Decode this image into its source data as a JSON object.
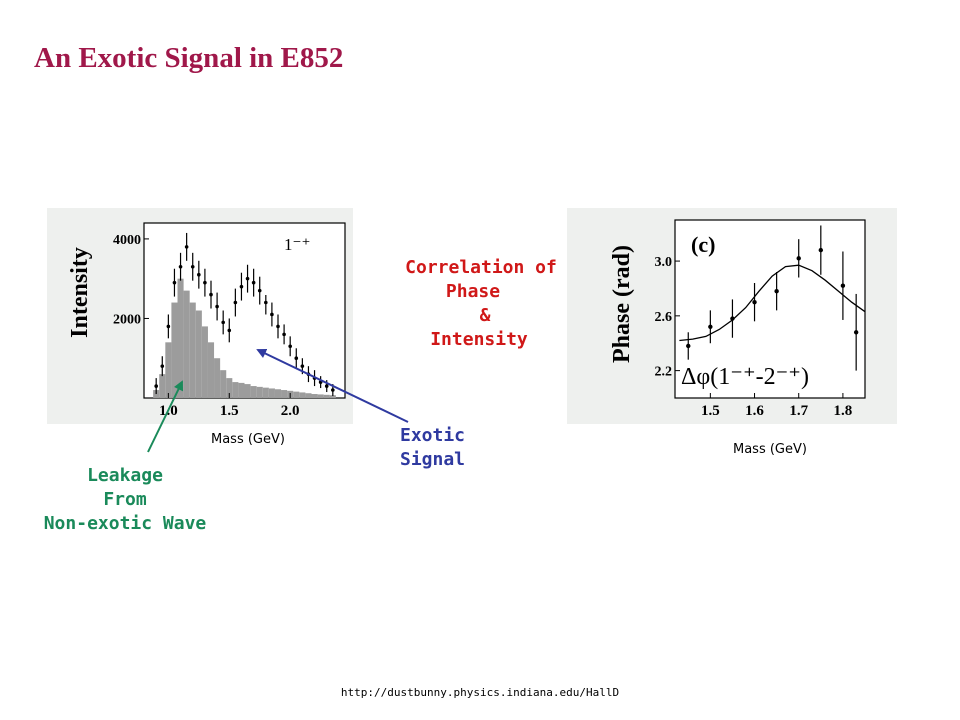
{
  "title": "An Exotic Signal in E852",
  "footer_url": "http://dustbunny.physics.indiana.edu/HallD",
  "annotations": {
    "correlation": [
      "Correlation of",
      "Phase",
      "&",
      "Intensity"
    ],
    "exotic": [
      "Exotic",
      "Signal"
    ],
    "leakage": [
      "Leakage",
      "From",
      "Non-exotic Wave"
    ]
  },
  "colors": {
    "title": "#a0184a",
    "correlation": "#d01818",
    "exotic": "#2f3aa0",
    "leakage": "#1a8a5a",
    "histogram_fill": "#9c9c9c"
  },
  "chart_data": [
    {
      "type": "bar",
      "ylabel": "Intensity",
      "xlabel": "Mass (GeV)",
      "legend": "1⁻⁺",
      "x_ticks": [
        "1.0",
        "1.5",
        "2.0"
      ],
      "y_ticks": [
        "2000",
        "4000"
      ],
      "xlim": [
        0.8,
        2.45
      ],
      "ylim": [
        0,
        4400
      ],
      "grid": false,
      "series": [
        {
          "style": "filled-histogram",
          "x": [
            0.9,
            0.95,
            1.0,
            1.05,
            1.1,
            1.15,
            1.2,
            1.25,
            1.3,
            1.35,
            1.4,
            1.45,
            1.5,
            1.55,
            1.6,
            1.65,
            1.7,
            1.75,
            1.8,
            1.85,
            1.9,
            1.95,
            2.0,
            2.05,
            2.1,
            2.15,
            2.2,
            2.25,
            2.3,
            2.35
          ],
          "values": [
            200,
            600,
            1400,
            2400,
            3000,
            2700,
            2400,
            2200,
            1800,
            1400,
            1000,
            700,
            500,
            400,
            380,
            350,
            300,
            280,
            260,
            240,
            220,
            200,
            180,
            160,
            140,
            120,
            100,
            90,
            80,
            70
          ]
        },
        {
          "style": "points-with-errors",
          "x": [
            0.9,
            0.95,
            1.0,
            1.05,
            1.1,
            1.15,
            1.2,
            1.25,
            1.3,
            1.35,
            1.4,
            1.45,
            1.5,
            1.55,
            1.6,
            1.65,
            1.7,
            1.75,
            1.8,
            1.85,
            1.9,
            1.95,
            2.0,
            2.05,
            2.1,
            2.15,
            2.2,
            2.25,
            2.3,
            2.35
          ],
          "values": [
            300,
            800,
            1800,
            2900,
            3300,
            3800,
            3300,
            3100,
            2900,
            2600,
            2300,
            1900,
            1700,
            2400,
            2800,
            3000,
            2900,
            2700,
            2400,
            2100,
            1800,
            1600,
            1300,
            1000,
            800,
            600,
            500,
            400,
            300,
            200
          ],
          "errors": [
            200,
            250,
            300,
            350,
            350,
            350,
            350,
            350,
            350,
            350,
            350,
            300,
            300,
            350,
            350,
            350,
            350,
            350,
            300,
            300,
            300,
            250,
            250,
            250,
            200,
            200,
            200,
            150,
            150,
            150
          ]
        }
      ]
    },
    {
      "type": "scatter",
      "ylabel": "Phase (rad)",
      "xlabel": "Mass (GeV)",
      "panel_label": "(c)",
      "series_label": "Δφ(1⁻⁺-2⁻⁺)",
      "x_ticks": [
        "1.5",
        "1.6",
        "1.7",
        "1.8"
      ],
      "y_ticks": [
        "2.2",
        "2.6",
        "3.0"
      ],
      "xlim": [
        1.42,
        1.85
      ],
      "ylim": [
        2.0,
        3.3
      ],
      "grid": false,
      "points": {
        "x": [
          1.45,
          1.5,
          1.55,
          1.6,
          1.65,
          1.7,
          1.75,
          1.8,
          1.83
        ],
        "y": [
          2.38,
          2.52,
          2.58,
          2.7,
          2.78,
          3.02,
          3.08,
          2.82,
          2.48
        ],
        "errors": [
          0.1,
          0.12,
          0.14,
          0.14,
          0.14,
          0.14,
          0.18,
          0.25,
          0.28
        ]
      },
      "fit_curve": {
        "x": [
          1.43,
          1.46,
          1.49,
          1.52,
          1.55,
          1.58,
          1.61,
          1.64,
          1.67,
          1.7,
          1.73,
          1.76,
          1.79,
          1.82,
          1.85
        ],
        "y": [
          2.42,
          2.43,
          2.45,
          2.5,
          2.57,
          2.66,
          2.78,
          2.89,
          2.96,
          2.97,
          2.93,
          2.86,
          2.78,
          2.7,
          2.63
        ]
      }
    }
  ]
}
